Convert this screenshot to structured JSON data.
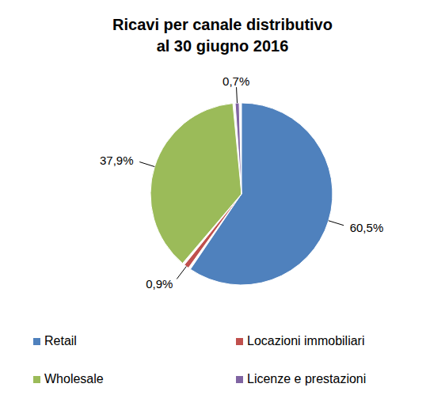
{
  "chart_data": {
    "type": "pie",
    "title": "Ricavi per canale distributivo",
    "subtitle": "al 30 giugno 2016",
    "categories": [
      "Retail",
      "Locazioni immobiliari",
      "Wholesale",
      "Licenze e prestazioni"
    ],
    "values": [
      60.5,
      0.9,
      37.9,
      0.7
    ],
    "value_labels": [
      "60,5%",
      "0,9%",
      "37,9%",
      "0,7%"
    ],
    "colors": [
      "#4F81BD",
      "#C0504D",
      "#9BBB59",
      "#8064A2"
    ],
    "data_labels": true,
    "legend": "bottom"
  }
}
